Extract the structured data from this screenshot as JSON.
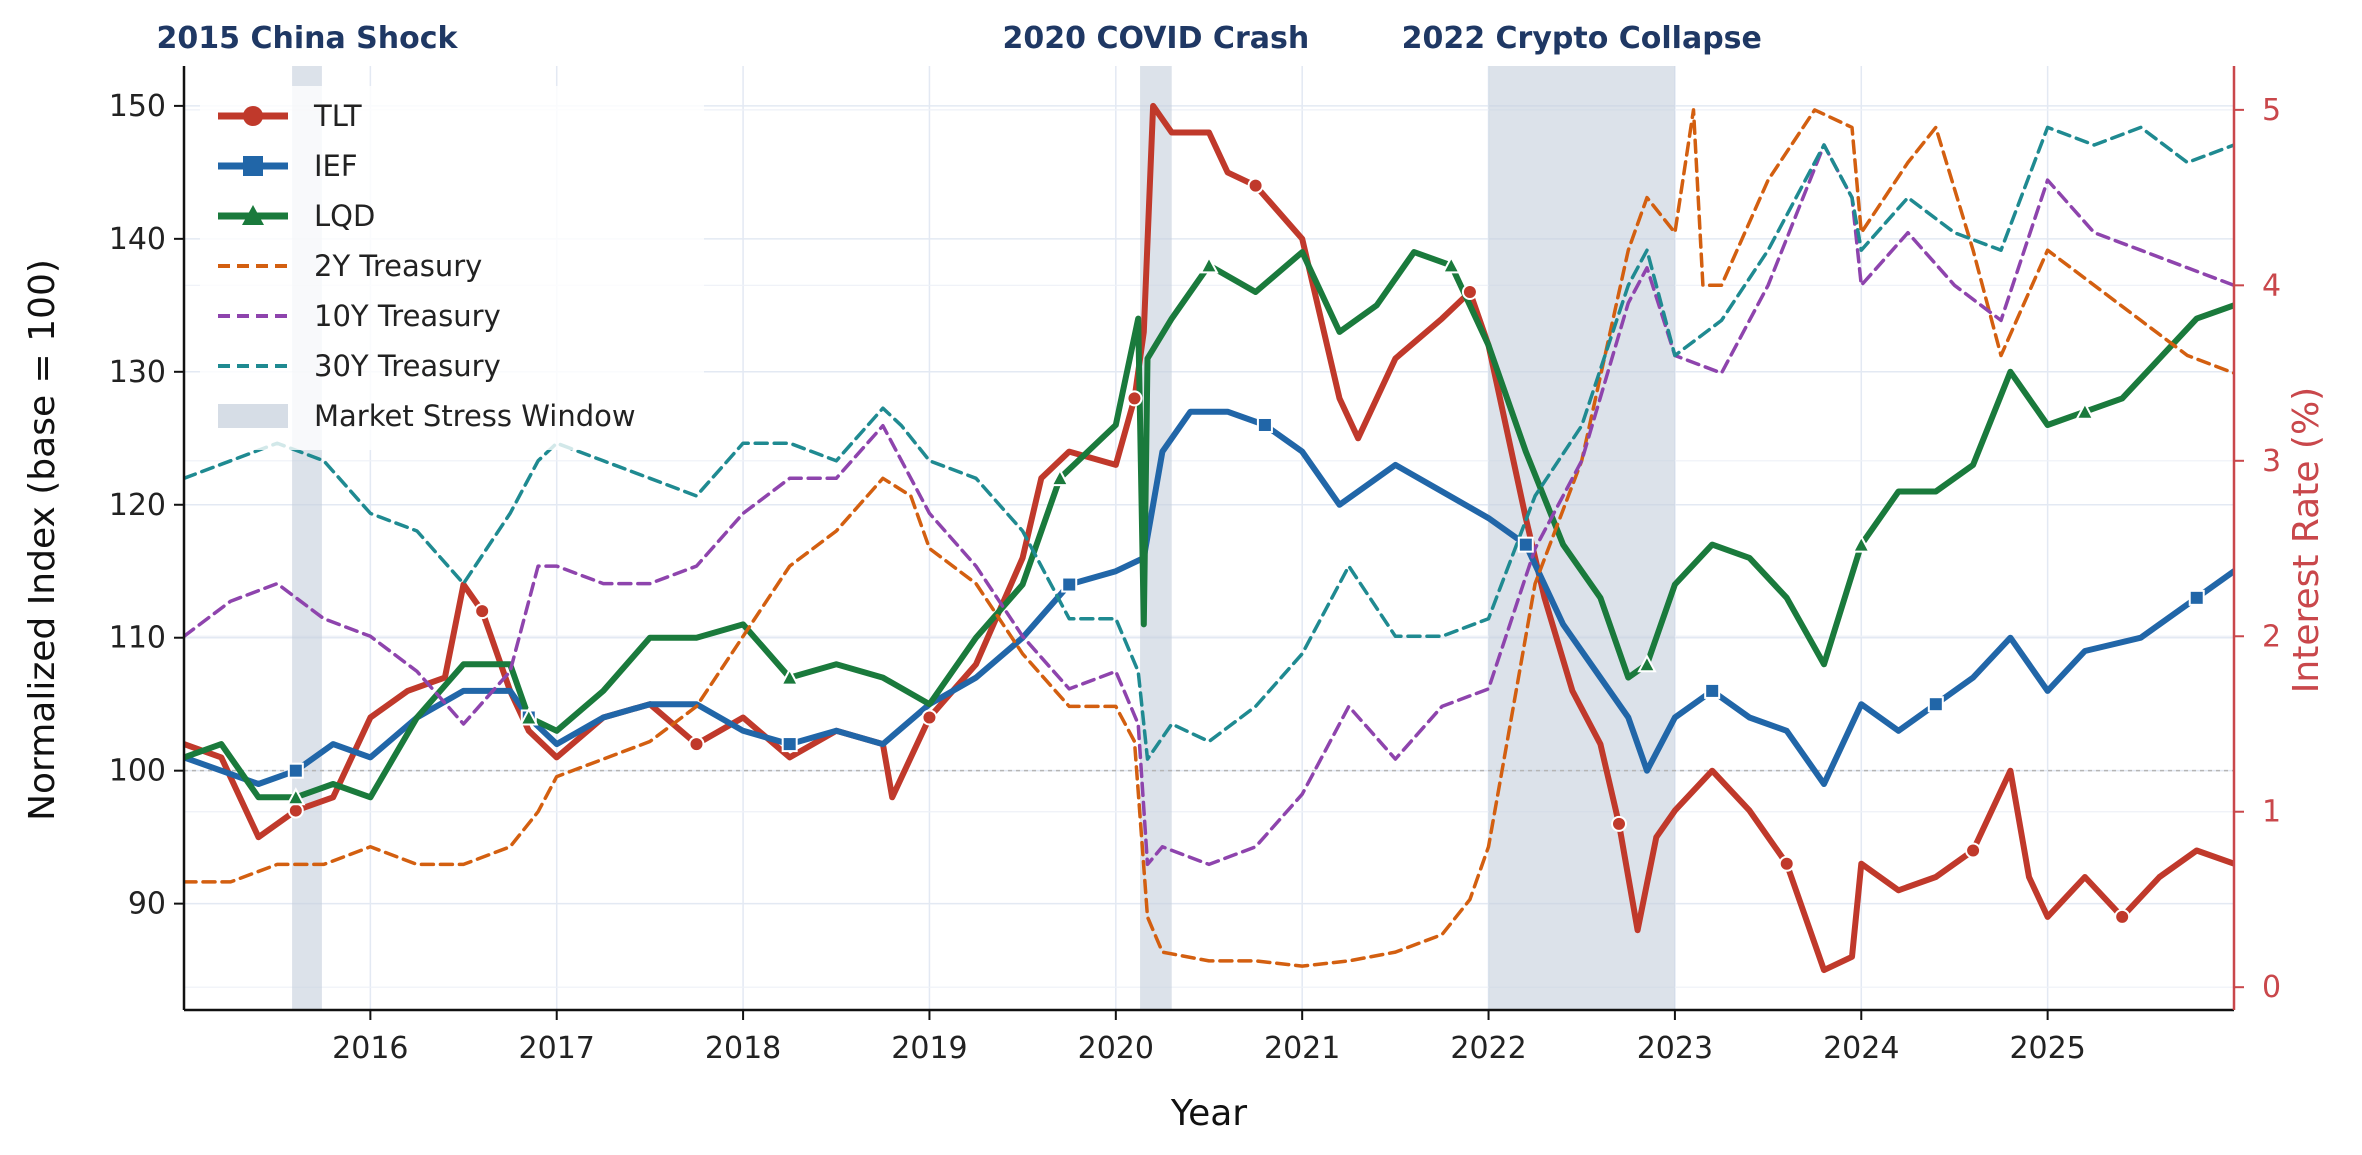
{
  "chart_data": {
    "type": "line",
    "xlabel": "Year",
    "ylabel_left": "Normalized Index  (base = 100)",
    "ylabel_right": "Interest Rate  (%)",
    "xlim": [
      2015.0,
      2026.0
    ],
    "ylim_left": [
      82,
      153
    ],
    "ylim_right": [
      -0.13,
      5.25
    ],
    "x_ticks": [
      2016,
      2017,
      2018,
      2019,
      2020,
      2021,
      2022,
      2023,
      2024,
      2025
    ],
    "x_tick_labels": [
      "2016",
      "2017",
      "2018",
      "2019",
      "2020",
      "2021",
      "2022",
      "2023",
      "2024",
      "2025"
    ],
    "y_ticks_left": [
      90,
      100,
      110,
      120,
      130,
      140,
      150
    ],
    "y_ticks_right": [
      0,
      1,
      2,
      3,
      4,
      5
    ],
    "baseline": 100,
    "grid": true,
    "legend_position": "top-left",
    "stress_windows": [
      {
        "label": "2015 China Shock",
        "start": 2015.58,
        "end": 2015.74
      },
      {
        "label": "2020 COVID Crash",
        "start": 2020.13,
        "end": 2020.3
      },
      {
        "label": "2022 Crypto Collapse",
        "start": 2022.0,
        "end": 2023.0
      }
    ],
    "stress_legend_label": "Market Stress Window",
    "series": [
      {
        "name": "TLT",
        "axis": "left",
        "color": "#c0392b",
        "style": "solid",
        "marker": "circle",
        "x": [
          2015.0,
          2015.2,
          2015.4,
          2015.6,
          2015.8,
          2016.0,
          2016.2,
          2016.4,
          2016.5,
          2016.6,
          2016.75,
          2016.85,
          2017.0,
          2017.25,
          2017.5,
          2017.75,
          2018.0,
          2018.25,
          2018.5,
          2018.75,
          2018.8,
          2019.0,
          2019.25,
          2019.5,
          2019.6,
          2019.75,
          2020.0,
          2020.1,
          2020.15,
          2020.2,
          2020.3,
          2020.5,
          2020.6,
          2020.75,
          2021.0,
          2021.2,
          2021.3,
          2021.5,
          2021.75,
          2021.9,
          2022.0,
          2022.2,
          2022.3,
          2022.45,
          2022.6,
          2022.7,
          2022.8,
          2022.9,
          2023.0,
          2023.2,
          2023.4,
          2023.6,
          2023.8,
          2023.95,
          2024.0,
          2024.2,
          2024.4,
          2024.6,
          2024.7,
          2024.8,
          2024.9,
          2025.0,
          2025.2,
          2025.4,
          2025.6,
          2025.8,
          2026.0
        ],
        "y": [
          102,
          101,
          95,
          97,
          98,
          104,
          106,
          107,
          114,
          112,
          106,
          103,
          101,
          104,
          105,
          102,
          104,
          101,
          103,
          102,
          98,
          104,
          108,
          116,
          122,
          124,
          123,
          128,
          133,
          150,
          148,
          148,
          145,
          144,
          140,
          128,
          125,
          131,
          134,
          136,
          132,
          119,
          113,
          106,
          102,
          96,
          88,
          95,
          97,
          100,
          97,
          93,
          85,
          86,
          93,
          91,
          92,
          94,
          97,
          100,
          92,
          89,
          92,
          89,
          92,
          94,
          93
        ]
      },
      {
        "name": "IEF",
        "axis": "left",
        "color": "#2166a8",
        "style": "solid",
        "marker": "square",
        "x": [
          2015.0,
          2015.2,
          2015.4,
          2015.6,
          2015.8,
          2016.0,
          2016.25,
          2016.5,
          2016.75,
          2016.85,
          2017.0,
          2017.25,
          2017.5,
          2017.75,
          2018.0,
          2018.25,
          2018.5,
          2018.75,
          2019.0,
          2019.25,
          2019.5,
          2019.75,
          2020.0,
          2020.15,
          2020.25,
          2020.4,
          2020.6,
          2020.8,
          2021.0,
          2021.2,
          2021.5,
          2021.75,
          2022.0,
          2022.2,
          2022.4,
          2022.6,
          2022.75,
          2022.85,
          2023.0,
          2023.2,
          2023.4,
          2023.6,
          2023.8,
          2024.0,
          2024.2,
          2024.4,
          2024.6,
          2024.8,
          2025.0,
          2025.2,
          2025.5,
          2025.8,
          2026.0
        ],
        "y": [
          101,
          100,
          99,
          100,
          102,
          101,
          104,
          106,
          106,
          104,
          102,
          104,
          105,
          105,
          103,
          102,
          103,
          102,
          105,
          107,
          110,
          114,
          115,
          116,
          124,
          127,
          127,
          126,
          124,
          120,
          123,
          121,
          119,
          117,
          111,
          107,
          104,
          100,
          104,
          106,
          104,
          103,
          99,
          105,
          103,
          105,
          107,
          110,
          106,
          109,
          110,
          113,
          115
        ]
      },
      {
        "name": "LQD",
        "axis": "left",
        "color": "#1a7a3c",
        "style": "solid",
        "marker": "triangle",
        "x": [
          2015.0,
          2015.2,
          2015.4,
          2015.6,
          2015.8,
          2016.0,
          2016.25,
          2016.5,
          2016.75,
          2016.85,
          2017.0,
          2017.25,
          2017.5,
          2017.75,
          2018.0,
          2018.25,
          2018.5,
          2018.75,
          2019.0,
          2019.25,
          2019.5,
          2019.7,
          2020.0,
          2020.12,
          2020.15,
          2020.17,
          2020.3,
          2020.5,
          2020.75,
          2021.0,
          2021.2,
          2021.4,
          2021.6,
          2021.8,
          2022.0,
          2022.2,
          2022.4,
          2022.6,
          2022.75,
          2022.85,
          2023.0,
          2023.2,
          2023.4,
          2023.6,
          2023.8,
          2024.0,
          2024.2,
          2024.4,
          2024.6,
          2024.8,
          2025.0,
          2025.2,
          2025.4,
          2025.6,
          2025.8,
          2026.0
        ],
        "y": [
          101,
          102,
          98,
          98,
          99,
          98,
          104,
          108,
          108,
          104,
          103,
          106,
          110,
          110,
          111,
          107,
          108,
          107,
          105,
          110,
          114,
          122,
          126,
          134,
          111,
          131,
          134,
          138,
          136,
          139,
          133,
          135,
          139,
          138,
          132,
          124,
          117,
          113,
          107,
          108,
          114,
          117,
          116,
          113,
          108,
          117,
          121,
          121,
          123,
          130,
          126,
          127,
          128,
          131,
          134,
          135
        ]
      },
      {
        "name": "2Y Treasury",
        "axis": "right",
        "color": "#d35f10",
        "style": "dashed",
        "x": [
          2015.0,
          2015.25,
          2015.5,
          2015.75,
          2016.0,
          2016.25,
          2016.5,
          2016.75,
          2016.9,
          2017.0,
          2017.25,
          2017.5,
          2017.75,
          2018.0,
          2018.25,
          2018.5,
          2018.75,
          2018.9,
          2019.0,
          2019.25,
          2019.5,
          2019.75,
          2020.0,
          2020.1,
          2020.17,
          2020.25,
          2020.5,
          2020.75,
          2021.0,
          2021.25,
          2021.5,
          2021.75,
          2021.9,
          2022.0,
          2022.1,
          2022.25,
          2022.5,
          2022.75,
          2022.85,
          2023.0,
          2023.1,
          2023.15,
          2023.25,
          2023.5,
          2023.75,
          2023.95,
          2024.0,
          2024.25,
          2024.4,
          2024.6,
          2024.75,
          2025.0,
          2025.25,
          2025.5,
          2025.75,
          2026.0
        ],
        "y": [
          0.6,
          0.6,
          0.7,
          0.7,
          0.8,
          0.7,
          0.7,
          0.8,
          1.0,
          1.2,
          1.3,
          1.4,
          1.6,
          2.0,
          2.4,
          2.6,
          2.9,
          2.8,
          2.5,
          2.3,
          1.9,
          1.6,
          1.6,
          1.4,
          0.4,
          0.2,
          0.15,
          0.15,
          0.12,
          0.15,
          0.2,
          0.3,
          0.5,
          0.8,
          1.4,
          2.3,
          3.0,
          4.2,
          4.5,
          4.3,
          5.0,
          4.0,
          4.0,
          4.6,
          5.0,
          4.9,
          4.3,
          4.7,
          4.9,
          4.2,
          3.6,
          4.2,
          4.0,
          3.8,
          3.6,
          3.5
        ]
      },
      {
        "name": "10Y Treasury",
        "axis": "right",
        "color": "#8e44ad",
        "style": "dashed",
        "x": [
          2015.0,
          2015.25,
          2015.5,
          2015.75,
          2016.0,
          2016.25,
          2016.5,
          2016.75,
          2016.9,
          2017.0,
          2017.25,
          2017.5,
          2017.75,
          2018.0,
          2018.25,
          2018.5,
          2018.75,
          2018.8,
          2019.0,
          2019.25,
          2019.5,
          2019.75,
          2020.0,
          2020.12,
          2020.17,
          2020.25,
          2020.5,
          2020.75,
          2021.0,
          2021.25,
          2021.5,
          2021.75,
          2022.0,
          2022.25,
          2022.5,
          2022.75,
          2022.85,
          2023.0,
          2023.25,
          2023.5,
          2023.8,
          2023.95,
          2024.0,
          2024.25,
          2024.5,
          2024.75,
          2025.0,
          2025.25,
          2025.5,
          2025.75,
          2026.0
        ],
        "y": [
          2.0,
          2.2,
          2.3,
          2.1,
          2.0,
          1.8,
          1.5,
          1.8,
          2.4,
          2.4,
          2.3,
          2.3,
          2.4,
          2.7,
          2.9,
          2.9,
          3.2,
          3.1,
          2.7,
          2.4,
          2.0,
          1.7,
          1.8,
          1.5,
          0.7,
          0.8,
          0.7,
          0.8,
          1.1,
          1.6,
          1.3,
          1.6,
          1.7,
          2.5,
          3.0,
          3.9,
          4.1,
          3.6,
          3.5,
          4.0,
          4.8,
          4.5,
          4.0,
          4.3,
          4.0,
          3.8,
          4.6,
          4.3,
          4.2,
          4.1,
          4.0
        ]
      },
      {
        "name": "30Y Treasury",
        "axis": "right",
        "color": "#1f8a91",
        "style": "dashed",
        "x": [
          2015.0,
          2015.25,
          2015.5,
          2015.75,
          2016.0,
          2016.25,
          2016.5,
          2016.75,
          2016.9,
          2017.0,
          2017.25,
          2017.5,
          2017.75,
          2018.0,
          2018.25,
          2018.5,
          2018.75,
          2018.85,
          2019.0,
          2019.25,
          2019.5,
          2019.75,
          2020.0,
          2020.12,
          2020.17,
          2020.3,
          2020.5,
          2020.75,
          2021.0,
          2021.25,
          2021.5,
          2021.75,
          2022.0,
          2022.25,
          2022.5,
          2022.75,
          2022.85,
          2023.0,
          2023.25,
          2023.5,
          2023.8,
          2023.95,
          2024.0,
          2024.25,
          2024.5,
          2024.75,
          2025.0,
          2025.25,
          2025.5,
          2025.75,
          2026.0
        ],
        "y": [
          2.9,
          3.0,
          3.1,
          3.0,
          2.7,
          2.6,
          2.3,
          2.7,
          3.0,
          3.1,
          3.0,
          2.9,
          2.8,
          3.1,
          3.1,
          3.0,
          3.3,
          3.2,
          3.0,
          2.9,
          2.6,
          2.1,
          2.1,
          1.8,
          1.3,
          1.5,
          1.4,
          1.6,
          1.9,
          2.4,
          2.0,
          2.0,
          2.1,
          2.8,
          3.2,
          4.0,
          4.2,
          3.6,
          3.8,
          4.2,
          4.8,
          4.5,
          4.2,
          4.5,
          4.3,
          4.2,
          4.9,
          4.8,
          4.9,
          4.7,
          4.8
        ]
      }
    ]
  }
}
